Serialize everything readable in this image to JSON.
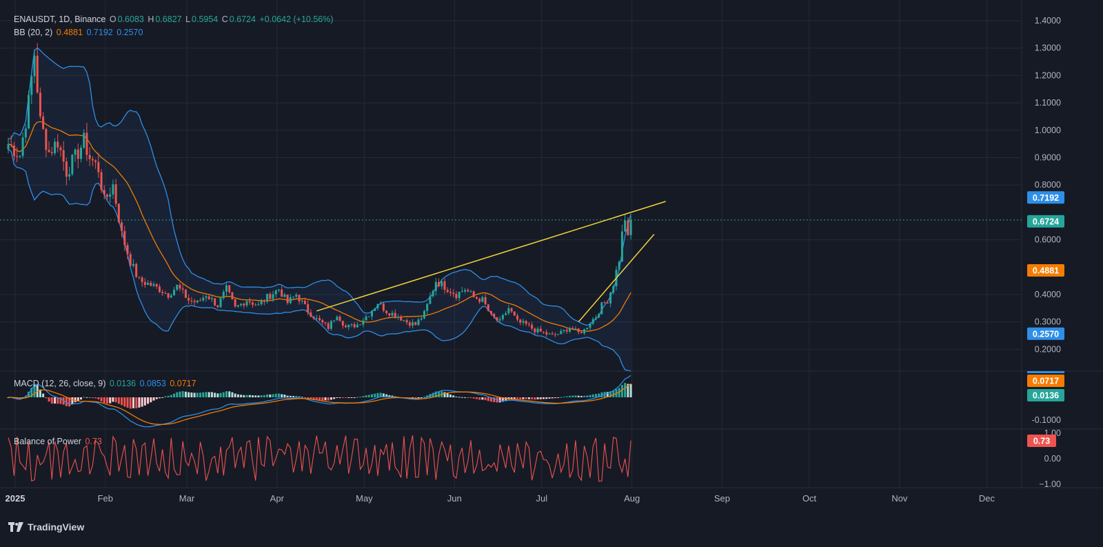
{
  "header": {
    "symbol": "ENAUSDT, 1D, Binance",
    "o_label": "O",
    "o": "0.6083",
    "h_label": "H",
    "h": "0.6827",
    "l_label": "L",
    "l": "0.5954",
    "c_label": "C",
    "c": "0.6724",
    "change": "+0.0642 (+10.56%)"
  },
  "bb_legend": {
    "label": "BB (20, 2)",
    "basis": "0.4881",
    "upper": "0.7192",
    "lower": "0.2570"
  },
  "macd_legend": {
    "label": "MACD (12, 26, close, 9)",
    "hist": "0.0136",
    "macd": "0.0853",
    "signal": "0.0717"
  },
  "bop_legend": {
    "label": "Balance of Power",
    "value": "0.73"
  },
  "branding": {
    "name": "TradingView"
  },
  "colors": {
    "background": "#161a25",
    "grid": "#262a36",
    "up": "#26a69a",
    "down": "#ef5350",
    "bb_band": "#2e8fe8",
    "bb_basis": "#f57c00",
    "trendline": "#f2d43b",
    "bop": "#ef5350"
  },
  "chart_data": [
    {
      "type": "candlestick",
      "overlay": "bollinger_bands",
      "x_ticks": [
        "2025",
        "Feb",
        "Mar",
        "Apr",
        "May",
        "Jun",
        "Jul",
        "Aug",
        "Sep",
        "Oct",
        "Nov",
        "Dec"
      ],
      "y_ticks": [
        "1.4000",
        "1.3000",
        "1.2000",
        "1.1000",
        "1.0000",
        "0.9000",
        "0.8000",
        "0.6000",
        "0.4000",
        "0.3000",
        "0.2000"
      ],
      "ylim": [
        0.14,
        1.45
      ],
      "last_close": 0.6724,
      "price_labels": {
        "upper": "0.7192",
        "last": "0.6724",
        "basis": "0.4881",
        "lower": "0.2570"
      },
      "close_anchors": [
        [
          0,
          0.95
        ],
        [
          4,
          0.91
        ],
        [
          7,
          1.1
        ],
        [
          9,
          1.28
        ],
        [
          11,
          1.03
        ],
        [
          14,
          0.92
        ],
        [
          17,
          0.96
        ],
        [
          20,
          0.85
        ],
        [
          23,
          0.9
        ],
        [
          26,
          0.96
        ],
        [
          28,
          0.9
        ],
        [
          31,
          0.86
        ],
        [
          33,
          0.74
        ],
        [
          36,
          0.8
        ],
        [
          39,
          0.62
        ],
        [
          42,
          0.52
        ],
        [
          45,
          0.45
        ],
        [
          48,
          0.44
        ],
        [
          52,
          0.42
        ],
        [
          55,
          0.4
        ],
        [
          58,
          0.43
        ],
        [
          62,
          0.38
        ],
        [
          65,
          0.37
        ],
        [
          68,
          0.4
        ],
        [
          72,
          0.36
        ],
        [
          75,
          0.42
        ],
        [
          78,
          0.35
        ],
        [
          82,
          0.38
        ],
        [
          86,
          0.36
        ],
        [
          89,
          0.39
        ],
        [
          93,
          0.42
        ],
        [
          96,
          0.37
        ],
        [
          99,
          0.4
        ],
        [
          103,
          0.34
        ],
        [
          106,
          0.31
        ],
        [
          110,
          0.28
        ],
        [
          113,
          0.33
        ],
        [
          116,
          0.28
        ],
        [
          120,
          0.29
        ],
        [
          124,
          0.33
        ],
        [
          127,
          0.37
        ],
        [
          130,
          0.34
        ],
        [
          134,
          0.32
        ],
        [
          137,
          0.3
        ],
        [
          140,
          0.29
        ],
        [
          143,
          0.33
        ],
        [
          145,
          0.39
        ],
        [
          147,
          0.45
        ],
        [
          150,
          0.43
        ],
        [
          154,
          0.4
        ],
        [
          157,
          0.42
        ],
        [
          160,
          0.39
        ],
        [
          163,
          0.38
        ],
        [
          166,
          0.32
        ],
        [
          169,
          0.3
        ],
        [
          172,
          0.35
        ],
        [
          175,
          0.3
        ],
        [
          178,
          0.29
        ],
        [
          181,
          0.27
        ],
        [
          184,
          0.26
        ],
        [
          187,
          0.25
        ],
        [
          190,
          0.26
        ],
        [
          193,
          0.28
        ],
        [
          196,
          0.26
        ],
        [
          198,
          0.27
        ],
        [
          200,
          0.3
        ],
        [
          202,
          0.32
        ],
        [
          204,
          0.36
        ],
        [
          206,
          0.38
        ],
        [
          208,
          0.44
        ],
        [
          210,
          0.53
        ],
        [
          211,
          0.62
        ],
        [
          212,
          0.68
        ],
        [
          213,
          0.6
        ],
        [
          214,
          0.672
        ]
      ],
      "trendlines": [
        {
          "from": [
            106,
            0.34
          ],
          "to": [
            226,
            0.74
          ]
        },
        {
          "from": [
            196,
            0.3
          ],
          "to": [
            222,
            0.62
          ]
        }
      ]
    },
    {
      "type": "macd",
      "y_ticks": [
        "-0.1000"
      ],
      "values": {
        "histogram": 0.0136,
        "macd": 0.0853,
        "signal": 0.0717
      },
      "price_labels": {
        "signal": "0.0717",
        "hist": "0.0136"
      }
    },
    {
      "type": "line",
      "name": "Balance of Power",
      "y_ticks": [
        "1.00",
        "0.00",
        "−1.00"
      ],
      "ylim": [
        -1,
        1
      ],
      "last": 0.73,
      "price_label": "0.73"
    }
  ]
}
